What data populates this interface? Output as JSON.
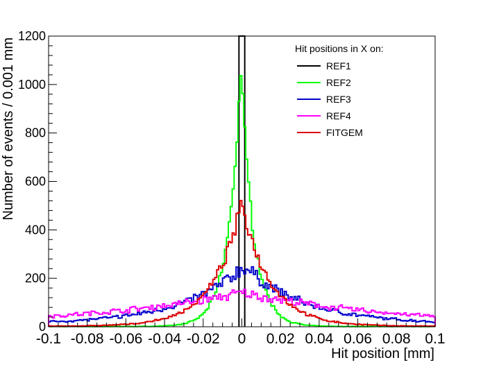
{
  "chart_data": {
    "type": "line",
    "style": "step-histogram",
    "title": "",
    "xlabel": "Hit position [mm]",
    "ylabel": "Number of events / 0.001 mm",
    "xlim": [
      -0.1,
      0.1
    ],
    "ylim": [
      0,
      1200
    ],
    "x_ticks": [
      -0.1,
      -0.08,
      -0.06,
      -0.04,
      -0.02,
      0,
      0.02,
      0.04,
      0.06,
      0.08,
      0.1
    ],
    "x_tick_labels": [
      "-0.1",
      "-0.08",
      "-0.06",
      "-0.04",
      "-0.02",
      "0",
      "0.02",
      "0.04",
      "0.06",
      "0.08",
      "0.1"
    ],
    "y_ticks": [
      0,
      200,
      400,
      600,
      800,
      1000,
      1200
    ],
    "y_tick_labels": [
      "0",
      "200",
      "400",
      "600",
      "800",
      "1000",
      "1200"
    ],
    "legend": {
      "title": "Hit positions in X on:",
      "position": "top-right",
      "entries": [
        "REF1",
        "REF2",
        "REF3",
        "REF4",
        "FITGEM"
      ]
    },
    "series": [
      {
        "name": "REF1",
        "color": "#000000",
        "width": 0.0015,
        "amplitude": 1200
      },
      {
        "name": "REF2",
        "color": "#00ff00",
        "center": -0.0005,
        "amplitude": 1070,
        "decay": 0.0065,
        "baseline": 1,
        "noise": 0.05
      },
      {
        "name": "REF3",
        "color": "#0000cc",
        "center": 0.001,
        "amplitude": 240,
        "decay": 0.032,
        "baseline": 10,
        "noise": 0.12
      },
      {
        "name": "REF4",
        "color": "#ff00ff",
        "center": 0.0,
        "amplitude": 140,
        "decay": 0.085,
        "baseline": 0,
        "noise": 0.13
      },
      {
        "name": "FITGEM",
        "color": "#dd0000",
        "center": 0.0,
        "amplitude": 510,
        "decay": 0.0145,
        "baseline": 2,
        "noise": 0.06
      }
    ]
  }
}
